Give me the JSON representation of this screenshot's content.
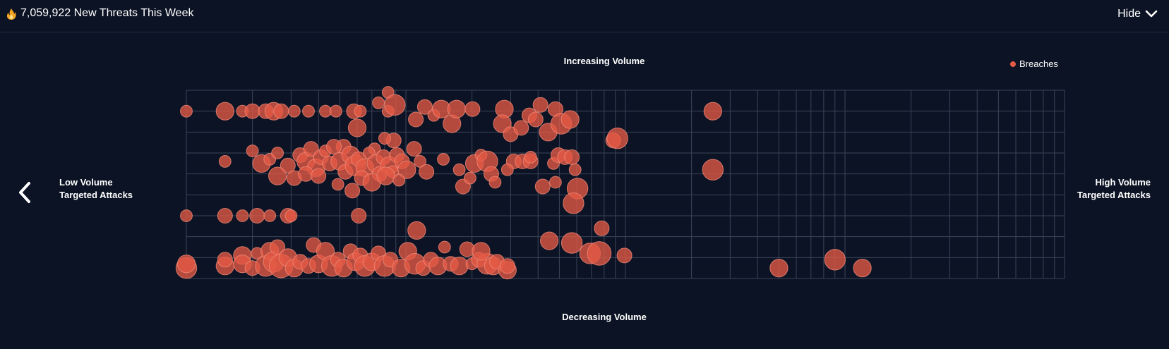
{
  "header": {
    "title": "7,059,922 New Threats This Week",
    "hide_label": "Hide"
  },
  "labels": {
    "top": "Increasing Volume",
    "bottom": "Decreasing Volume",
    "left_line1": "Low Volume",
    "left_line2": "Targeted Attacks",
    "right_line1": "High Volume",
    "right_line2": "Targeted Attacks"
  },
  "colors": {
    "background": "#0c1324",
    "grid": "#3a4458",
    "bubble": "#e45a45",
    "bubble_stroke": "#f08a78"
  },
  "chart_data": {
    "type": "scatter",
    "x_scale": "log",
    "xlim": [
      1,
      10000
    ],
    "ylim": [
      0,
      9
    ],
    "grid": true,
    "legend": {
      "position": "top-right",
      "entries": [
        "Breaches"
      ]
    },
    "series": [
      {
        "name": "Breaches",
        "points": [
          {
            "x": 1.0,
            "y": 8,
            "s": 2
          },
          {
            "x": 1.5,
            "y": 8,
            "s": 3
          },
          {
            "x": 1.8,
            "y": 8,
            "s": 2
          },
          {
            "x": 2.0,
            "y": 8,
            "s": 2.5
          },
          {
            "x": 2.3,
            "y": 8,
            "s": 2.5
          },
          {
            "x": 2.5,
            "y": 8,
            "s": 3
          },
          {
            "x": 2.7,
            "y": 8,
            "s": 2.5
          },
          {
            "x": 3.1,
            "y": 8,
            "s": 2
          },
          {
            "x": 3.6,
            "y": 8,
            "s": 2
          },
          {
            "x": 4.3,
            "y": 8,
            "s": 2
          },
          {
            "x": 4.8,
            "y": 8,
            "s": 2
          },
          {
            "x": 5.8,
            "y": 8,
            "s": 2.5
          },
          {
            "x": 6.2,
            "y": 8,
            "s": 2
          },
          {
            "x": 8.3,
            "y": 8.9,
            "s": 2
          },
          {
            "x": 8.3,
            "y": 8,
            "s": 2
          },
          {
            "x": 7.5,
            "y": 8.4,
            "s": 2
          },
          {
            "x": 8.9,
            "y": 8.3,
            "s": 3.5
          },
          {
            "x": 11.1,
            "y": 7.6,
            "s": 2.5
          },
          {
            "x": 12.2,
            "y": 8.2,
            "s": 2.5
          },
          {
            "x": 13.4,
            "y": 7.8,
            "s": 2
          },
          {
            "x": 14.5,
            "y": 8.1,
            "s": 3
          },
          {
            "x": 16.2,
            "y": 7.4,
            "s": 3
          },
          {
            "x": 17.0,
            "y": 8.1,
            "s": 3
          },
          {
            "x": 20.1,
            "y": 8.1,
            "s": 2.5
          },
          {
            "x": 28.1,
            "y": 8.1,
            "s": 3
          },
          {
            "x": 6.0,
            "y": 7.2,
            "s": 3
          },
          {
            "x": 8.8,
            "y": 6.6,
            "s": 2.5
          },
          {
            "x": 5.2,
            "y": 6.3,
            "s": 2.5
          },
          {
            "x": 7.2,
            "y": 6.2,
            "s": 2
          },
          {
            "x": 8.0,
            "y": 6.7,
            "s": 2
          },
          {
            "x": 1.5,
            "y": 5.6,
            "s": 2
          },
          {
            "x": 2.0,
            "y": 6.1,
            "s": 2
          },
          {
            "x": 2.2,
            "y": 5.5,
            "s": 3
          },
          {
            "x": 2.4,
            "y": 5.7,
            "s": 2
          },
          {
            "x": 2.6,
            "y": 6.0,
            "s": 2
          },
          {
            "x": 2.9,
            "y": 5.4,
            "s": 2.5
          },
          {
            "x": 3.3,
            "y": 5.9,
            "s": 2.5
          },
          {
            "x": 3.5,
            "y": 5.6,
            "s": 3
          },
          {
            "x": 3.7,
            "y": 6.2,
            "s": 2.5
          },
          {
            "x": 3.9,
            "y": 5.3,
            "s": 3
          },
          {
            "x": 4.1,
            "y": 5.8,
            "s": 2.5
          },
          {
            "x": 4.3,
            "y": 6.1,
            "s": 2
          },
          {
            "x": 4.5,
            "y": 5.5,
            "s": 2.5
          },
          {
            "x": 4.7,
            "y": 6.3,
            "s": 2.5
          },
          {
            "x": 5.0,
            "y": 5.6,
            "s": 3
          },
          {
            "x": 5.3,
            "y": 5.1,
            "s": 2.5
          },
          {
            "x": 5.6,
            "y": 5.9,
            "s": 3
          },
          {
            "x": 5.9,
            "y": 5.4,
            "s": 3.5
          },
          {
            "x": 6.1,
            "y": 5.7,
            "s": 2.5
          },
          {
            "x": 6.5,
            "y": 5.3,
            "s": 3
          },
          {
            "x": 6.8,
            "y": 6.0,
            "s": 2
          },
          {
            "x": 7.3,
            "y": 5.5,
            "s": 3
          },
          {
            "x": 7.6,
            "y": 5.0,
            "s": 2.5
          },
          {
            "x": 7.9,
            "y": 5.8,
            "s": 2.5
          },
          {
            "x": 8.4,
            "y": 5.4,
            "s": 3
          },
          {
            "x": 8.7,
            "y": 5.1,
            "s": 2
          },
          {
            "x": 9.1,
            "y": 5.9,
            "s": 2.5
          },
          {
            "x": 9.6,
            "y": 5.6,
            "s": 2.5
          },
          {
            "x": 10.1,
            "y": 5.2,
            "s": 3
          },
          {
            "x": 10.9,
            "y": 6.2,
            "s": 2.5
          },
          {
            "x": 11.6,
            "y": 5.6,
            "s": 2
          },
          {
            "x": 12.4,
            "y": 5.1,
            "s": 2.5
          },
          {
            "x": 3.1,
            "y": 4.8,
            "s": 2.5
          },
          {
            "x": 4.9,
            "y": 4.5,
            "s": 2
          },
          {
            "x": 5.7,
            "y": 4.2,
            "s": 2.5
          },
          {
            "x": 6.3,
            "y": 4.8,
            "s": 2.5
          },
          {
            "x": 7.0,
            "y": 4.6,
            "s": 3
          },
          {
            "x": 8.1,
            "y": 4.9,
            "s": 3
          },
          {
            "x": 9.3,
            "y": 4.7,
            "s": 2
          },
          {
            "x": 3.5,
            "y": 5.0,
            "s": 2.5
          },
          {
            "x": 2.6,
            "y": 4.9,
            "s": 3
          },
          {
            "x": 4.0,
            "y": 4.9,
            "s": 2.5
          },
          {
            "x": 14.8,
            "y": 5.7,
            "s": 2
          },
          {
            "x": 17.5,
            "y": 5.2,
            "s": 2
          },
          {
            "x": 18.2,
            "y": 4.4,
            "s": 2.5
          },
          {
            "x": 19.6,
            "y": 4.8,
            "s": 2
          },
          {
            "x": 20.5,
            "y": 5.5,
            "s": 3
          },
          {
            "x": 22.0,
            "y": 5.9,
            "s": 2
          },
          {
            "x": 23.5,
            "y": 5.6,
            "s": 3.5
          },
          {
            "x": 24.5,
            "y": 5.0,
            "s": 2.5
          },
          {
            "x": 25.5,
            "y": 4.6,
            "s": 2
          },
          {
            "x": 31.0,
            "y": 5.6,
            "s": 2.5
          },
          {
            "x": 34.0,
            "y": 5.6,
            "s": 2.5
          },
          {
            "x": 37.0,
            "y": 5.6,
            "s": 2.5
          },
          {
            "x": 42.0,
            "y": 4.4,
            "s": 2.5
          },
          {
            "x": 47.0,
            "y": 5.5,
            "s": 2
          },
          {
            "x": 49.5,
            "y": 5.9,
            "s": 2.5
          },
          {
            "x": 27.5,
            "y": 7.4,
            "s": 3
          },
          {
            "x": 30.0,
            "y": 6.9,
            "s": 2.5
          },
          {
            "x": 33.5,
            "y": 7.2,
            "s": 2.5
          },
          {
            "x": 36.5,
            "y": 7.8,
            "s": 2.5
          },
          {
            "x": 39.0,
            "y": 7.6,
            "s": 2.5
          },
          {
            "x": 41.0,
            "y": 8.3,
            "s": 2.5
          },
          {
            "x": 44.5,
            "y": 7.0,
            "s": 3
          },
          {
            "x": 48.0,
            "y": 8.1,
            "s": 2.5
          },
          {
            "x": 51.0,
            "y": 7.4,
            "s": 3.5
          },
          {
            "x": 56.0,
            "y": 7.6,
            "s": 3
          },
          {
            "x": 53.0,
            "y": 5.8,
            "s": 2.5
          },
          {
            "x": 57.0,
            "y": 5.8,
            "s": 2.5
          },
          {
            "x": 59.0,
            "y": 5.2,
            "s": 2
          },
          {
            "x": 60.5,
            "y": 4.3,
            "s": 3.5
          },
          {
            "x": 1.0,
            "y": 3,
            "s": 2
          },
          {
            "x": 1.5,
            "y": 3,
            "s": 2.5
          },
          {
            "x": 1.8,
            "y": 3,
            "s": 2
          },
          {
            "x": 2.1,
            "y": 3,
            "s": 2.5
          },
          {
            "x": 2.4,
            "y": 3,
            "s": 2
          },
          {
            "x": 2.9,
            "y": 3,
            "s": 2.5
          },
          {
            "x": 3.0,
            "y": 3,
            "s": 2
          },
          {
            "x": 6.1,
            "y": 3,
            "s": 2.5
          },
          {
            "x": 11.2,
            "y": 2.3,
            "s": 3
          },
          {
            "x": 58.0,
            "y": 3.6,
            "s": 3.5
          },
          {
            "x": 78.0,
            "y": 2.4,
            "s": 2.5
          },
          {
            "x": 1.0,
            "y": 0.5,
            "s": 3.5
          },
          {
            "x": 1.0,
            "y": 0.7,
            "s": 3
          },
          {
            "x": 1.5,
            "y": 0.6,
            "s": 3
          },
          {
            "x": 1.5,
            "y": 0.9,
            "s": 2.5
          },
          {
            "x": 1.8,
            "y": 1.1,
            "s": 3
          },
          {
            "x": 1.8,
            "y": 0.7,
            "s": 3
          },
          {
            "x": 2.0,
            "y": 0.5,
            "s": 2.5
          },
          {
            "x": 2.1,
            "y": 1.2,
            "s": 2
          },
          {
            "x": 2.3,
            "y": 0.6,
            "s": 3.5
          },
          {
            "x": 2.4,
            "y": 1.3,
            "s": 3
          },
          {
            "x": 2.5,
            "y": 0.8,
            "s": 3.5
          },
          {
            "x": 2.6,
            "y": 1.5,
            "s": 2.5
          },
          {
            "x": 2.7,
            "y": 0.6,
            "s": 4
          },
          {
            "x": 2.9,
            "y": 1.0,
            "s": 3
          },
          {
            "x": 3.1,
            "y": 0.5,
            "s": 3
          },
          {
            "x": 3.3,
            "y": 0.8,
            "s": 2.5
          },
          {
            "x": 3.6,
            "y": 0.6,
            "s": 2.5
          },
          {
            "x": 3.8,
            "y": 1.6,
            "s": 2.5
          },
          {
            "x": 4.0,
            "y": 0.7,
            "s": 3
          },
          {
            "x": 4.3,
            "y": 1.3,
            "s": 3
          },
          {
            "x": 4.6,
            "y": 0.6,
            "s": 3.5
          },
          {
            "x": 4.9,
            "y": 0.9,
            "s": 2.5
          },
          {
            "x": 5.2,
            "y": 0.5,
            "s": 3
          },
          {
            "x": 5.6,
            "y": 1.3,
            "s": 2.5
          },
          {
            "x": 5.9,
            "y": 0.8,
            "s": 3
          },
          {
            "x": 6.2,
            "y": 1.1,
            "s": 2.5
          },
          {
            "x": 6.5,
            "y": 0.6,
            "s": 3.5
          },
          {
            "x": 7.0,
            "y": 0.8,
            "s": 3
          },
          {
            "x": 7.5,
            "y": 1.2,
            "s": 2.5
          },
          {
            "x": 8.0,
            "y": 0.6,
            "s": 3.5
          },
          {
            "x": 8.5,
            "y": 0.9,
            "s": 2.5
          },
          {
            "x": 9.5,
            "y": 0.5,
            "s": 3
          },
          {
            "x": 10.2,
            "y": 1.3,
            "s": 3
          },
          {
            "x": 11.0,
            "y": 0.7,
            "s": 3.5
          },
          {
            "x": 12.0,
            "y": 0.5,
            "s": 2.5
          },
          {
            "x": 13.0,
            "y": 0.9,
            "s": 2.5
          },
          {
            "x": 14.0,
            "y": 0.6,
            "s": 3
          },
          {
            "x": 15.0,
            "y": 1.5,
            "s": 2
          },
          {
            "x": 16.0,
            "y": 0.7,
            "s": 2.5
          },
          {
            "x": 17.5,
            "y": 0.6,
            "s": 3
          },
          {
            "x": 19.0,
            "y": 1.4,
            "s": 2.5
          },
          {
            "x": 20.0,
            "y": 0.7,
            "s": 2
          },
          {
            "x": 21.5,
            "y": 0.9,
            "s": 2.5
          },
          {
            "x": 23.5,
            "y": 0.7,
            "s": 3.5
          },
          {
            "x": 25.0,
            "y": 0.6,
            "s": 3
          },
          {
            "x": 26.0,
            "y": 0.8,
            "s": 2.5
          },
          {
            "x": 29.0,
            "y": 0.4,
            "s": 3
          },
          {
            "x": 29.0,
            "y": 0.6,
            "s": 2.5
          },
          {
            "x": 22.0,
            "y": 1.3,
            "s": 3
          },
          {
            "x": 45.0,
            "y": 1.8,
            "s": 3
          },
          {
            "x": 57.0,
            "y": 1.7,
            "s": 3.5
          },
          {
            "x": 69.0,
            "y": 1.2,
            "s": 3.5
          },
          {
            "x": 76.0,
            "y": 1.2,
            "s": 4
          },
          {
            "x": 99.0,
            "y": 1.1,
            "s": 2.5
          },
          {
            "x": 250.0,
            "y": 8,
            "s": 3
          },
          {
            "x": 88.0,
            "y": 6.6,
            "s": 2.5
          },
          {
            "x": 92.0,
            "y": 6.7,
            "s": 3.5
          },
          {
            "x": 250.0,
            "y": 5.2,
            "s": 3.5
          },
          {
            "x": 48.0,
            "y": 4.6,
            "s": 2
          },
          {
            "x": 29.0,
            "y": 5.2,
            "s": 2
          },
          {
            "x": 37.0,
            "y": 5.8,
            "s": 2
          },
          {
            "x": 500.0,
            "y": 0.5,
            "s": 3
          },
          {
            "x": 900.0,
            "y": 0.9,
            "s": 3.5
          },
          {
            "x": 1200.0,
            "y": 0.5,
            "s": 3
          }
        ]
      }
    ]
  }
}
